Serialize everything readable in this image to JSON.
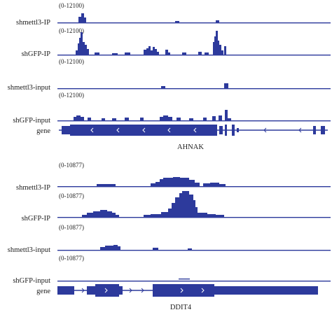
{
  "color": "#2d3a9c",
  "panels": [
    {
      "gene_name": "AHNAK",
      "tracks": [
        {
          "label": "shmettl3-IP",
          "range": "(0-12100)"
        },
        {
          "label": "shGFP-IP",
          "range": "(0-12100)"
        },
        {
          "label": "shmettl3-input",
          "range": "(0-12100)"
        },
        {
          "label": "shGFP-input",
          "range": "(0-12100)"
        }
      ],
      "gene_label": "gene"
    },
    {
      "gene_name": "DDIT4",
      "tracks": [
        {
          "label": "shmettl3-IP",
          "range": "(0-10877)"
        },
        {
          "label": "shGFP-IP",
          "range": "(0-10877)"
        },
        {
          "label": "shmettl3-input",
          "range": "(0-10877)"
        },
        {
          "label": "shGFP-input",
          "range": "(0-10877)"
        }
      ],
      "gene_label": "gene"
    }
  ]
}
